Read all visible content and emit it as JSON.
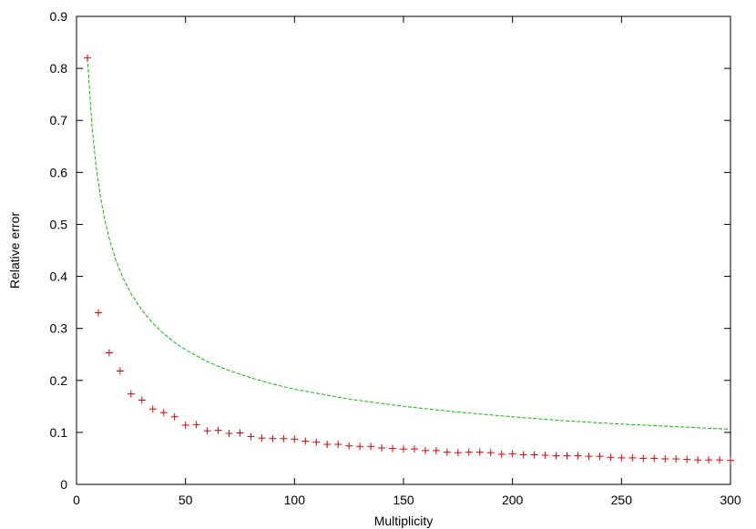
{
  "chart_data": {
    "type": "scatter",
    "title": "",
    "xlabel": "Multiplicity",
    "ylabel": "Relative error",
    "xlim": [
      0,
      300
    ],
    "ylim": [
      0,
      0.9
    ],
    "xticks": [
      0,
      50,
      100,
      150,
      200,
      250,
      300
    ],
    "yticks": [
      0,
      0.1,
      0.2,
      0.3,
      0.4,
      0.5,
      0.6,
      0.7,
      0.8,
      0.9
    ],
    "xtick_labels": [
      "0",
      "50",
      "100",
      "150",
      "200",
      "250",
      "300"
    ],
    "ytick_labels": [
      "0",
      "0.1",
      "0.2",
      "0.3",
      "0.4",
      "0.5",
      "0.6",
      "0.7",
      "0.8",
      "0.9"
    ],
    "grid": false,
    "legend": "none",
    "series": [
      {
        "kind": "points",
        "marker": "plus",
        "color": "#e00000",
        "x": [
          5,
          10,
          15,
          20,
          25,
          30,
          35,
          40,
          45,
          50,
          55,
          60,
          65,
          70,
          75,
          80,
          85,
          90,
          95,
          100,
          105,
          110,
          115,
          120,
          125,
          130,
          135,
          140,
          145,
          150,
          155,
          160,
          165,
          170,
          175,
          180,
          185,
          190,
          195,
          200,
          205,
          210,
          215,
          220,
          225,
          230,
          235,
          240,
          245,
          250,
          255,
          260,
          265,
          270,
          275,
          280,
          285,
          290,
          295,
          300
        ],
        "y": [
          0.82,
          0.33,
          0.253,
          0.218,
          0.174,
          0.162,
          0.145,
          0.138,
          0.13,
          0.114,
          0.115,
          0.103,
          0.104,
          0.098,
          0.099,
          0.092,
          0.089,
          0.088,
          0.088,
          0.087,
          0.083,
          0.081,
          0.077,
          0.077,
          0.074,
          0.073,
          0.073,
          0.07,
          0.069,
          0.068,
          0.068,
          0.065,
          0.065,
          0.062,
          0.061,
          0.062,
          0.062,
          0.061,
          0.058,
          0.059,
          0.057,
          0.057,
          0.056,
          0.055,
          0.055,
          0.055,
          0.054,
          0.054,
          0.052,
          0.051,
          0.051,
          0.05,
          0.05,
          0.049,
          0.049,
          0.048,
          0.047,
          0.047,
          0.047,
          0.046
        ]
      },
      {
        "kind": "line",
        "style": "dashed",
        "color": "#00c000",
        "x": [
          5,
          7,
          9,
          11,
          13,
          15,
          18,
          21,
          25,
          30,
          35,
          40,
          45,
          50,
          60,
          70,
          80,
          90,
          100,
          125,
          150,
          175,
          200,
          225,
          250,
          275,
          300
        ],
        "y": [
          0.82,
          0.693,
          0.611,
          0.553,
          0.508,
          0.473,
          0.432,
          0.4,
          0.367,
          0.335,
          0.31,
          0.29,
          0.273,
          0.259,
          0.236,
          0.219,
          0.205,
          0.193,
          0.183,
          0.164,
          0.15,
          0.139,
          0.13,
          0.122,
          0.116,
          0.111,
          0.106
        ]
      }
    ]
  }
}
